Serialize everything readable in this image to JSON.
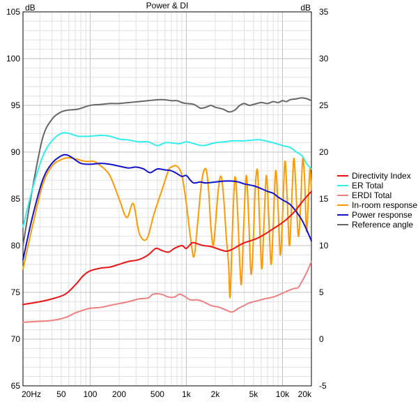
{
  "chart_data": {
    "type": "line",
    "title": "Power & DI",
    "left_axis": {
      "unit": "dB",
      "ylim": [
        65,
        105
      ],
      "ticks": [
        "105",
        "100",
        "95",
        "90",
        "85",
        "80",
        "75",
        "70",
        "65"
      ]
    },
    "right_axis": {
      "unit": "dB",
      "ylim": [
        -5,
        35
      ],
      "ticks": [
        "35",
        "30",
        "25",
        "20",
        "15",
        "10",
        "5",
        "0",
        "-5"
      ]
    },
    "x_axis": {
      "scale": "log",
      "xlim": [
        20,
        20000
      ],
      "ticks": [
        {
          "value": 20,
          "label": "20Hz"
        },
        {
          "value": 50,
          "label": "50"
        },
        {
          "value": 100,
          "label": "100"
        },
        {
          "value": 200,
          "label": "200"
        },
        {
          "value": 500,
          "label": "500"
        },
        {
          "value": 1000,
          "label": "1k"
        },
        {
          "value": 2000,
          "label": "2k"
        },
        {
          "value": 5000,
          "label": "5k"
        },
        {
          "value": 10000,
          "label": "10k"
        },
        {
          "value": 20000,
          "label": "20k"
        }
      ]
    },
    "grid": true,
    "legend_position": "right",
    "series": [
      {
        "name": "Directivity Index",
        "color": "#ee1111",
        "axis": "right",
        "points": [
          [
            20,
            3.7
          ],
          [
            30,
            4.0
          ],
          [
            40,
            4.3
          ],
          [
            55,
            4.8
          ],
          [
            70,
            5.8
          ],
          [
            85,
            6.8
          ],
          [
            100,
            7.3
          ],
          [
            130,
            7.6
          ],
          [
            160,
            7.7
          ],
          [
            200,
            8.0
          ],
          [
            250,
            8.3
          ],
          [
            320,
            8.5
          ],
          [
            400,
            9.0
          ],
          [
            480,
            9.7
          ],
          [
            550,
            9.5
          ],
          [
            650,
            9.3
          ],
          [
            750,
            9.7
          ],
          [
            900,
            10.0
          ],
          [
            1000,
            9.7
          ],
          [
            1150,
            10.3
          ],
          [
            1300,
            10.2
          ],
          [
            1500,
            10.0
          ],
          [
            1800,
            9.9
          ],
          [
            2200,
            9.6
          ],
          [
            2600,
            9.4
          ],
          [
            3000,
            9.6
          ],
          [
            3500,
            10.0
          ],
          [
            4000,
            10.3
          ],
          [
            4600,
            10.5
          ],
          [
            5500,
            10.8
          ],
          [
            6500,
            11.2
          ],
          [
            8000,
            11.8
          ],
          [
            9500,
            12.3
          ],
          [
            11000,
            12.8
          ],
          [
            13000,
            13.5
          ],
          [
            15000,
            14.3
          ],
          [
            17000,
            15.0
          ],
          [
            20000,
            15.8
          ]
        ]
      },
      {
        "name": "ER Total",
        "color": "#33eeee",
        "axis": "left",
        "points": [
          [
            20,
            82
          ],
          [
            25,
            86
          ],
          [
            32,
            89.5
          ],
          [
            40,
            91.2
          ],
          [
            50,
            92
          ],
          [
            60,
            92
          ],
          [
            75,
            91.7
          ],
          [
            100,
            91.7
          ],
          [
            130,
            91.8
          ],
          [
            160,
            91.7
          ],
          [
            200,
            91.4
          ],
          [
            250,
            91.3
          ],
          [
            320,
            91.1
          ],
          [
            400,
            91.1
          ],
          [
            500,
            90.7
          ],
          [
            600,
            91
          ],
          [
            700,
            91
          ],
          [
            850,
            90.9
          ],
          [
            1000,
            91.1
          ],
          [
            1200,
            90.9
          ],
          [
            1500,
            90.7
          ],
          [
            2000,
            91
          ],
          [
            2500,
            91.1
          ],
          [
            3000,
            91.2
          ],
          [
            4000,
            91.2
          ],
          [
            5000,
            91.3
          ],
          [
            6000,
            91.3
          ],
          [
            8000,
            91
          ],
          [
            10000,
            90.7
          ],
          [
            12000,
            90.5
          ],
          [
            14000,
            90.0
          ],
          [
            16000,
            89.6
          ],
          [
            18000,
            88.7
          ],
          [
            20000,
            88.2
          ]
        ]
      },
      {
        "name": "ERDI Total",
        "color": "#f08080",
        "axis": "right",
        "points": [
          [
            20,
            1.8
          ],
          [
            30,
            1.9
          ],
          [
            40,
            2.0
          ],
          [
            55,
            2.3
          ],
          [
            70,
            2.8
          ],
          [
            85,
            3.1
          ],
          [
            100,
            3.3
          ],
          [
            130,
            3.4
          ],
          [
            160,
            3.6
          ],
          [
            200,
            3.8
          ],
          [
            250,
            4.0
          ],
          [
            320,
            4.3
          ],
          [
            400,
            4.4
          ],
          [
            450,
            4.8
          ],
          [
            550,
            4.8
          ],
          [
            650,
            4.5
          ],
          [
            750,
            4.5
          ],
          [
            850,
            4.8
          ],
          [
            950,
            4.6
          ],
          [
            1100,
            4.2
          ],
          [
            1300,
            4.2
          ],
          [
            1500,
            4.0
          ],
          [
            1800,
            3.6
          ],
          [
            2200,
            3.4
          ],
          [
            2600,
            3.1
          ],
          [
            3000,
            2.9
          ],
          [
            3500,
            3.3
          ],
          [
            4000,
            3.6
          ],
          [
            4600,
            3.9
          ],
          [
            5500,
            4.1
          ],
          [
            6500,
            4.3
          ],
          [
            8000,
            4.5
          ],
          [
            9500,
            4.8
          ],
          [
            11000,
            5.1
          ],
          [
            13000,
            5.4
          ],
          [
            14500,
            5.5
          ],
          [
            16000,
            6.2
          ],
          [
            18000,
            7.2
          ],
          [
            20000,
            8.3
          ]
        ]
      },
      {
        "name": "In-room response",
        "color": "#ff9900",
        "axis": "left",
        "points": [
          [
            20,
            77.5
          ],
          [
            25,
            82
          ],
          [
            32,
            86.5
          ],
          [
            40,
            88.5
          ],
          [
            50,
            89.2
          ],
          [
            60,
            89.4
          ],
          [
            75,
            89.2
          ],
          [
            90,
            89.0
          ],
          [
            110,
            89.0
          ],
          [
            130,
            88.5
          ],
          [
            160,
            87.5
          ],
          [
            200,
            85
          ],
          [
            240,
            83
          ],
          [
            280,
            84.5
          ],
          [
            320,
            81.5
          ],
          [
            360,
            80.6
          ],
          [
            400,
            81
          ],
          [
            450,
            83
          ],
          [
            500,
            84.5
          ],
          [
            560,
            86
          ],
          [
            650,
            88
          ],
          [
            700,
            88.4
          ],
          [
            800,
            88.5
          ],
          [
            900,
            87.5
          ],
          [
            1000,
            84.5
          ],
          [
            1100,
            81
          ],
          [
            1200,
            78.8
          ],
          [
            1300,
            82
          ],
          [
            1450,
            87
          ],
          [
            1600,
            88.2
          ],
          [
            1700,
            86
          ],
          [
            1800,
            82
          ],
          [
            1900,
            80
          ],
          [
            2000,
            82
          ],
          [
            2150,
            86
          ],
          [
            2300,
            87.4
          ],
          [
            2450,
            85
          ],
          [
            2600,
            81
          ],
          [
            2750,
            78
          ],
          [
            2850,
            74.5
          ],
          [
            3000,
            81
          ],
          [
            3200,
            87.3
          ],
          [
            3400,
            84
          ],
          [
            3600,
            78
          ],
          [
            3750,
            76
          ],
          [
            3950,
            82
          ],
          [
            4200,
            87.5
          ],
          [
            4450,
            83
          ],
          [
            4700,
            77
          ],
          [
            4950,
            80
          ],
          [
            5200,
            86
          ],
          [
            5500,
            88
          ],
          [
            5800,
            82
          ],
          [
            6100,
            77.5
          ],
          [
            6400,
            82
          ],
          [
            6800,
            87.5
          ],
          [
            7200,
            83
          ],
          [
            7600,
            78
          ],
          [
            8000,
            82
          ],
          [
            8500,
            88
          ],
          [
            9000,
            84
          ],
          [
            9500,
            79
          ],
          [
            10000,
            83
          ],
          [
            10600,
            89
          ],
          [
            11200,
            85
          ],
          [
            11800,
            80
          ],
          [
            12400,
            84
          ],
          [
            13100,
            89.3
          ],
          [
            13800,
            86
          ],
          [
            14600,
            81
          ],
          [
            15400,
            84
          ],
          [
            16200,
            89.2
          ],
          [
            17000,
            87
          ],
          [
            17800,
            81.5
          ],
          [
            18600,
            85
          ],
          [
            19300,
            88.2
          ],
          [
            20000,
            86
          ]
        ]
      },
      {
        "name": "Power response",
        "color": "#1111cc",
        "axis": "left",
        "points": [
          [
            20,
            78.5
          ],
          [
            25,
            83
          ],
          [
            32,
            87
          ],
          [
            40,
            88.8
          ],
          [
            50,
            89.6
          ],
          [
            57,
            89.7
          ],
          [
            65,
            89.4
          ],
          [
            80,
            88.8
          ],
          [
            100,
            88.7
          ],
          [
            130,
            88.8
          ],
          [
            160,
            88.7
          ],
          [
            200,
            88.5
          ],
          [
            250,
            88.3
          ],
          [
            300,
            88.4
          ],
          [
            360,
            88.2
          ],
          [
            420,
            87.8
          ],
          [
            500,
            88.2
          ],
          [
            600,
            88.1
          ],
          [
            700,
            88.0
          ],
          [
            800,
            87.7
          ],
          [
            900,
            87.4
          ],
          [
            1000,
            87.5
          ],
          [
            1100,
            87.0
          ],
          [
            1200,
            86.7
          ],
          [
            1400,
            86.8
          ],
          [
            1600,
            86.7
          ],
          [
            2000,
            86.8
          ],
          [
            2500,
            86.9
          ],
          [
            3000,
            86.9
          ],
          [
            3500,
            86.8
          ],
          [
            4000,
            86.6
          ],
          [
            5000,
            86.4
          ],
          [
            6000,
            86.1
          ],
          [
            7000,
            85.8
          ],
          [
            8000,
            85.6
          ],
          [
            9000,
            85.2
          ],
          [
            10000,
            84.9
          ],
          [
            12000,
            84.4
          ],
          [
            14000,
            83.6
          ],
          [
            16000,
            82.7
          ],
          [
            18000,
            81.6
          ],
          [
            20000,
            80.5
          ]
        ]
      },
      {
        "name": "Reference angle",
        "color": "#666666",
        "axis": "left",
        "points": [
          [
            20,
            80
          ],
          [
            25,
            86
          ],
          [
            32,
            91.5
          ],
          [
            40,
            93.5
          ],
          [
            50,
            94.3
          ],
          [
            60,
            94.5
          ],
          [
            75,
            94.6
          ],
          [
            100,
            95
          ],
          [
            130,
            95.1
          ],
          [
            160,
            95.2
          ],
          [
            200,
            95.2
          ],
          [
            250,
            95.3
          ],
          [
            320,
            95.4
          ],
          [
            400,
            95.5
          ],
          [
            500,
            95.6
          ],
          [
            600,
            95.6
          ],
          [
            700,
            95.5
          ],
          [
            800,
            95.5
          ],
          [
            900,
            95.3
          ],
          [
            1000,
            95.2
          ],
          [
            1200,
            95.1
          ],
          [
            1400,
            94.7
          ],
          [
            1600,
            94.8
          ],
          [
            1800,
            95.0
          ],
          [
            2000,
            94.8
          ],
          [
            2400,
            94.6
          ],
          [
            2800,
            94.3
          ],
          [
            3200,
            94.5
          ],
          [
            3600,
            95.0
          ],
          [
            4000,
            95.2
          ],
          [
            4500,
            95.0
          ],
          [
            5000,
            95.1
          ],
          [
            6000,
            95.3
          ],
          [
            7000,
            95.2
          ],
          [
            8000,
            95.4
          ],
          [
            9000,
            95.3
          ],
          [
            10000,
            95.5
          ],
          [
            11000,
            95.4
          ],
          [
            12000,
            95.6
          ],
          [
            14000,
            95.7
          ],
          [
            16000,
            95.8
          ],
          [
            18000,
            95.7
          ],
          [
            20000,
            95.5
          ]
        ]
      }
    ]
  }
}
